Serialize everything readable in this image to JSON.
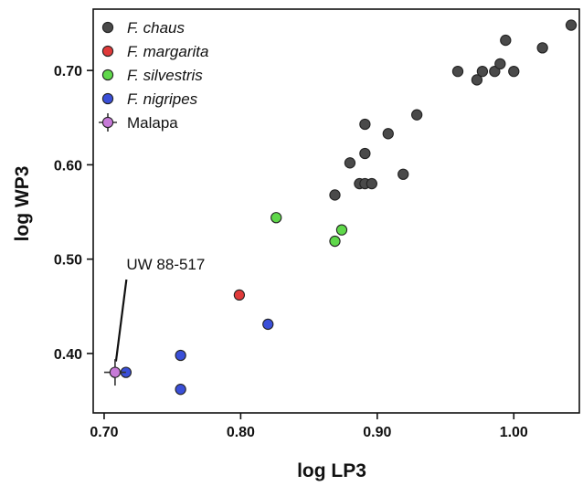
{
  "chart_data": {
    "type": "scatter",
    "title": "",
    "xlabel": "log LP3",
    "ylabel": "log WP3",
    "xlim": [
      0.692,
      1.048
    ],
    "ylim": [
      0.337,
      0.765
    ],
    "xticks": [
      0.7,
      0.8,
      0.9,
      1.0
    ],
    "xtick_labels": [
      "0.70",
      "0.80",
      "0.90",
      "1.00"
    ],
    "yticks": [
      0.4,
      0.5,
      0.6,
      0.7
    ],
    "ytick_labels": [
      "0.40",
      "0.50",
      "0.60",
      "0.70"
    ],
    "grid": false,
    "legend_position": "top-left",
    "series": [
      {
        "name": "F. chaus",
        "italic": true,
        "color": "#4a4a4a",
        "marker": "circle",
        "x": [
          0.869,
          0.88,
          0.887,
          0.891,
          0.891,
          0.891,
          0.896,
          0.908,
          0.919,
          0.929,
          0.959,
          0.973,
          0.977,
          0.986,
          0.99,
          0.994,
          1.0,
          1.021,
          1.042
        ],
        "y": [
          0.568,
          0.602,
          0.58,
          0.58,
          0.612,
          0.643,
          0.58,
          0.633,
          0.59,
          0.653,
          0.699,
          0.69,
          0.699,
          0.699,
          0.707,
          0.732,
          0.699,
          0.724,
          0.748
        ]
      },
      {
        "name": "F. margarita",
        "italic": true,
        "color": "#e03a3a",
        "marker": "circle",
        "x": [
          0.799
        ],
        "y": [
          0.462
        ]
      },
      {
        "name": "F. silvestris",
        "italic": true,
        "color": "#5fd84a",
        "marker": "circle",
        "x": [
          0.826,
          0.869,
          0.874
        ],
        "y": [
          0.544,
          0.519,
          0.531
        ]
      },
      {
        "name": "F. nigripes",
        "italic": true,
        "color": "#3a4fd8",
        "marker": "circle",
        "x": [
          0.716,
          0.756,
          0.756,
          0.82
        ],
        "y": [
          0.38,
          0.398,
          0.362,
          0.431
        ]
      },
      {
        "name": "Malapa",
        "italic": false,
        "color": "#c77ad8",
        "marker": "circle-errorbar",
        "x": [
          0.708
        ],
        "y": [
          0.38
        ],
        "x_err": 0.008,
        "y_err": 0.014
      }
    ],
    "annotations": [
      {
        "text": "UW 88-517",
        "x": 0.708,
        "y": 0.38,
        "label_x": 0.717,
        "label_y": 0.489
      }
    ]
  }
}
